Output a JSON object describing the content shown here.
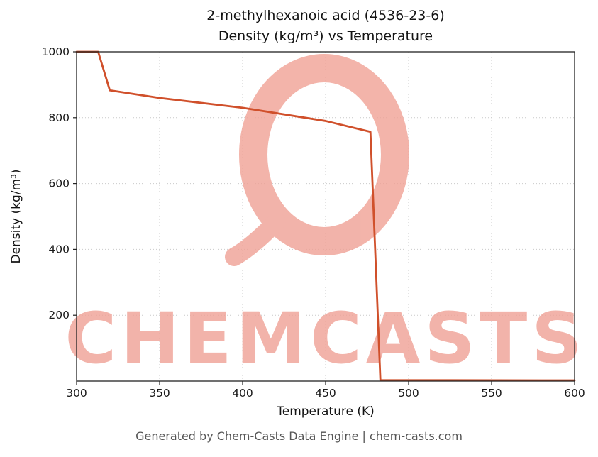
{
  "footer": {
    "text": "Generated by Chem-Casts Data Engine | chem-casts.com"
  },
  "watermark": {
    "text": "CHEMCASTS",
    "color": "#f0a195"
  },
  "chart_data": {
    "type": "line",
    "title_line1": "2-methylhexanoic acid (4536-23-6)",
    "title_line2": "Density (kg/m³) vs Temperature",
    "xlabel": "Temperature (K)",
    "ylabel": "Density (kg/m³)",
    "xlim": [
      300,
      600
    ],
    "ylim": [
      0,
      1000
    ],
    "x_ticks": [
      300,
      350,
      400,
      450,
      500,
      550,
      600
    ],
    "y_ticks": [
      200,
      400,
      600,
      800,
      1000
    ],
    "grid": true,
    "legend": false,
    "line_color": "#d0502b",
    "series": [
      {
        "name": "Density (kg/m³)",
        "x": [
          300,
          313,
          320,
          350,
          400,
          450,
          477,
          483,
          600
        ],
        "y": [
          1000,
          1000,
          883,
          860,
          830,
          790,
          757,
          3,
          2
        ]
      }
    ]
  }
}
